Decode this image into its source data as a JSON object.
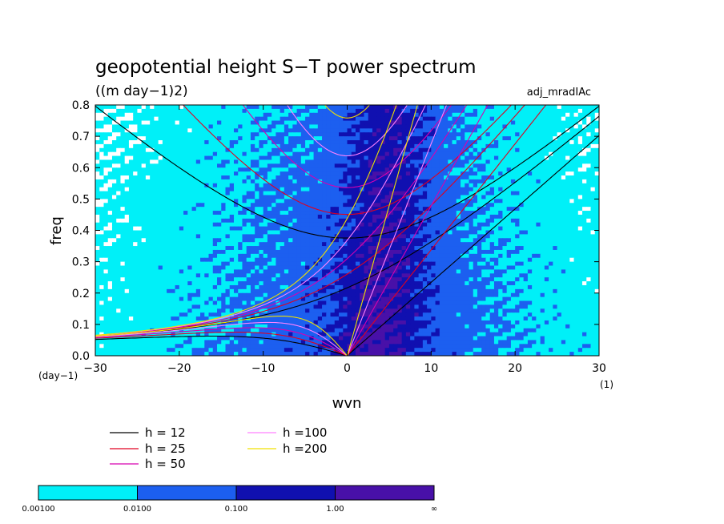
{
  "chart_data": {
    "type": "heatmap",
    "title": "geopotential height S−T power spectrum",
    "subtitle": "((m day−1)2)",
    "tag": "adj_mradIAc",
    "xlabel": "wvn",
    "ylabel": "freq",
    "x_unit": "(1)",
    "y_unit": "(day−1)",
    "xlim": [
      -30,
      30
    ],
    "ylim": [
      0,
      0.8
    ],
    "x_ticks": [
      -30,
      -20,
      -10,
      0,
      10,
      20,
      30
    ],
    "y_ticks": [
      0.0,
      0.1,
      0.2,
      0.3,
      0.4,
      0.5,
      0.6,
      0.7,
      0.8
    ],
    "x_tick_labels": [
      "−30",
      "−20",
      "−10",
      "0",
      "10",
      "20",
      "30"
    ],
    "y_tick_labels": [
      "0.0",
      "0.1",
      "0.2",
      "0.3",
      "0.4",
      "0.5",
      "0.6",
      "0.7",
      "0.8"
    ],
    "contour_levels": {
      "colors": [
        "#00f0f8",
        "#1c5ff0",
        "#1010b0",
        "#4810a8"
      ],
      "labels": [
        "0.00100",
        "0.0100",
        "0.100",
        "1.00",
        "∞"
      ]
    },
    "dispersion_curves": [
      {
        "label": "h = 12",
        "h": 12,
        "color": "#000000"
      },
      {
        "label": "h = 25",
        "h": 25,
        "color": "#e00020"
      },
      {
        "label": "h = 50",
        "h": 50,
        "color": "#d800b0"
      },
      {
        "label": "h =100",
        "h": 100,
        "color": "#ff80ff"
      },
      {
        "label": "h =200",
        "h": 200,
        "color": "#f0e000"
      }
    ]
  }
}
